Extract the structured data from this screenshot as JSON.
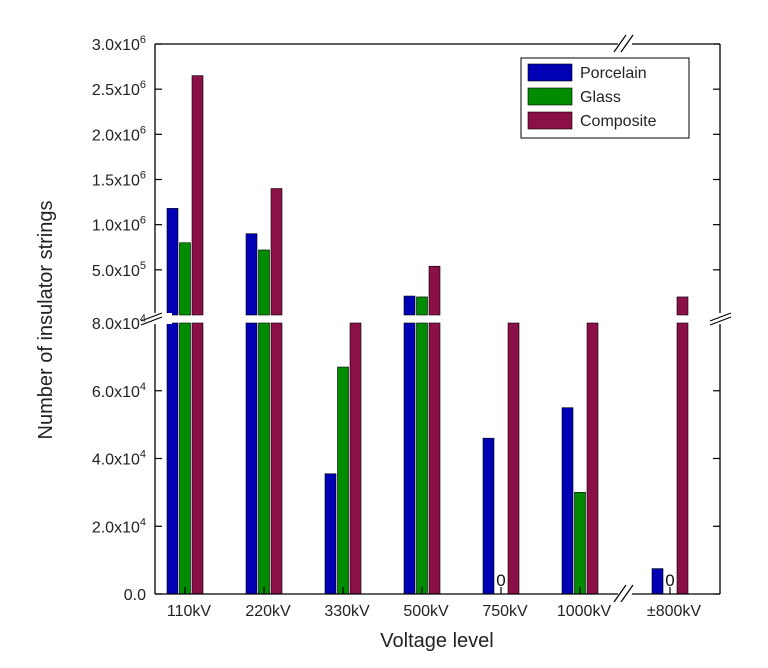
{
  "chart_data": {
    "type": "bar",
    "title": "",
    "xlabel": "Voltage level",
    "ylabel": "Number of insulator strings",
    "categories": [
      "110kV",
      "220kV",
      "330kV",
      "500kV",
      "750kV",
      "1000kV",
      "±800kV"
    ],
    "series": [
      {
        "name": "Porcelain",
        "color": "#0000b4",
        "values": [
          1180000,
          900000,
          35500,
          210000,
          46000,
          55000,
          7500
        ]
      },
      {
        "name": "Glass",
        "color": "#008c00",
        "values": [
          800000,
          720000,
          67000,
          200000,
          0,
          30000,
          0
        ]
      },
      {
        "name": "Composite",
        "color": "#8b1048",
        "values": [
          2650000,
          1400000,
          80000,
          540000,
          80000,
          80000,
          200000
        ]
      }
    ],
    "zero_labels": [
      {
        "category": "750kV",
        "series": "Glass",
        "text": "0"
      },
      {
        "category": "±800kV",
        "series": "Glass",
        "text": "0"
      }
    ],
    "y_axis": {
      "broken": true,
      "lower_range": [
        0,
        80000
      ],
      "upper_range": [
        0,
        3000000
      ],
      "upper_ticks": [
        {
          "mant": "3.0x10",
          "exp": "6"
        },
        {
          "mant": "2.5x10",
          "exp": "6"
        },
        {
          "mant": "2.0x10",
          "exp": "6"
        },
        {
          "mant": "1.5x10",
          "exp": "6"
        },
        {
          "mant": "1.0x10",
          "exp": "6"
        },
        {
          "mant": "5.0x10",
          "exp": "5"
        }
      ],
      "lower_ticks": [
        {
          "mant": "8.0x10",
          "exp": "4"
        },
        {
          "mant": "6.0x10",
          "exp": "4"
        },
        {
          "mant": "4.0x10",
          "exp": "4"
        },
        {
          "mant": "2.0x10",
          "exp": "4"
        },
        {
          "mant": "0.0",
          "exp": ""
        }
      ]
    },
    "x_axis_broken_between": [
      "1000kV",
      "±800kV"
    ],
    "legend_position": "top-right",
    "grid": false
  }
}
